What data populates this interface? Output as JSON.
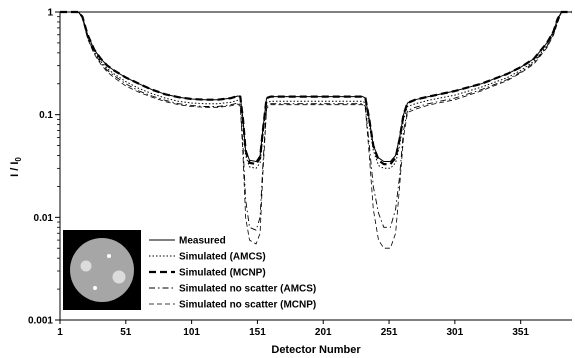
{
  "chart_data": {
    "type": "line",
    "xlabel": "Detector Number",
    "ylabel": "I / I",
    "ylabel_subscript": "0",
    "y_scale": "log",
    "xlim": [
      1,
      390
    ],
    "ylim": [
      0.001,
      1
    ],
    "x_ticks": [
      1,
      51,
      101,
      151,
      201,
      251,
      301,
      351
    ],
    "y_ticks": [
      {
        "value": 0.001,
        "label": "0.001"
      },
      {
        "value": 0.01,
        "label": "0.01"
      },
      {
        "value": 0.1,
        "label": "0.1"
      },
      {
        "value": 1,
        "label": "1"
      }
    ],
    "legend_position": "bottom-left",
    "inset_image": "phantom-cross-section",
    "series": [
      {
        "name": "Measured",
        "style": "solid-thin",
        "x": [
          1,
          15,
          18,
          22,
          27,
          32,
          37,
          42,
          51,
          61,
          71,
          81,
          91,
          101,
          111,
          121,
          131,
          136,
          138,
          140,
          142,
          145,
          150,
          153,
          155,
          158,
          161,
          171,
          181,
          201,
          221,
          231,
          233,
          236,
          239,
          243,
          247,
          252,
          256,
          259,
          262,
          265,
          271,
          281,
          301,
          321,
          341,
          351,
          361,
          371,
          376,
          379,
          382,
          385,
          390
        ],
        "y": [
          1,
          1,
          0.9,
          0.6,
          0.43,
          0.35,
          0.3,
          0.27,
          0.23,
          0.2,
          0.175,
          0.158,
          0.148,
          0.142,
          0.14,
          0.14,
          0.145,
          0.152,
          0.15,
          0.09,
          0.045,
          0.036,
          0.035,
          0.04,
          0.07,
          0.145,
          0.15,
          0.15,
          0.15,
          0.15,
          0.15,
          0.15,
          0.145,
          0.09,
          0.05,
          0.038,
          0.035,
          0.035,
          0.04,
          0.06,
          0.1,
          0.13,
          0.14,
          0.15,
          0.17,
          0.2,
          0.25,
          0.29,
          0.35,
          0.5,
          0.65,
          0.85,
          1,
          1,
          1
        ]
      },
      {
        "name": "Simulated (AMCS)",
        "style": "dotted",
        "x": [
          1,
          15,
          18,
          22,
          27,
          32,
          37,
          42,
          51,
          61,
          71,
          81,
          91,
          101,
          111,
          121,
          131,
          136,
          138,
          140,
          142,
          145,
          150,
          153,
          155,
          158,
          161,
          171,
          181,
          201,
          221,
          231,
          233,
          236,
          239,
          243,
          247,
          252,
          256,
          259,
          262,
          265,
          271,
          281,
          301,
          321,
          341,
          351,
          361,
          371,
          376,
          379,
          382,
          385,
          390
        ],
        "y": [
          1,
          1,
          0.88,
          0.57,
          0.41,
          0.33,
          0.28,
          0.25,
          0.21,
          0.18,
          0.16,
          0.145,
          0.135,
          0.13,
          0.128,
          0.128,
          0.132,
          0.138,
          0.135,
          0.08,
          0.04,
          0.031,
          0.03,
          0.034,
          0.06,
          0.13,
          0.135,
          0.135,
          0.135,
          0.135,
          0.135,
          0.135,
          0.13,
          0.08,
          0.045,
          0.032,
          0.03,
          0.03,
          0.034,
          0.05,
          0.09,
          0.12,
          0.128,
          0.138,
          0.155,
          0.185,
          0.23,
          0.27,
          0.33,
          0.47,
          0.62,
          0.82,
          1,
          1,
          1
        ]
      },
      {
        "name": "Simulated (MCNP)",
        "style": "dashed-thick",
        "x": [
          1,
          15,
          18,
          22,
          27,
          32,
          37,
          42,
          51,
          61,
          71,
          81,
          91,
          101,
          111,
          121,
          131,
          136,
          138,
          140,
          142,
          145,
          150,
          153,
          155,
          158,
          161,
          171,
          181,
          201,
          221,
          231,
          233,
          236,
          239,
          243,
          247,
          252,
          256,
          259,
          262,
          265,
          271,
          281,
          301,
          321,
          341,
          351,
          361,
          371,
          376,
          379,
          382,
          385,
          390
        ],
        "y": [
          1,
          1,
          0.9,
          0.6,
          0.43,
          0.35,
          0.3,
          0.27,
          0.23,
          0.2,
          0.175,
          0.158,
          0.148,
          0.142,
          0.14,
          0.14,
          0.145,
          0.152,
          0.15,
          0.09,
          0.045,
          0.034,
          0.033,
          0.038,
          0.068,
          0.145,
          0.15,
          0.15,
          0.15,
          0.15,
          0.15,
          0.15,
          0.145,
          0.09,
          0.05,
          0.036,
          0.033,
          0.033,
          0.038,
          0.058,
          0.1,
          0.13,
          0.14,
          0.15,
          0.17,
          0.2,
          0.25,
          0.29,
          0.35,
          0.5,
          0.65,
          0.85,
          1,
          1,
          1
        ]
      },
      {
        "name": "Simulated no scatter (AMCS)",
        "style": "dash-dot",
        "x": [
          1,
          15,
          18,
          22,
          27,
          32,
          37,
          42,
          51,
          61,
          71,
          81,
          91,
          101,
          111,
          121,
          131,
          136,
          138,
          140,
          142,
          145,
          150,
          153,
          155,
          158,
          161,
          171,
          181,
          201,
          221,
          231,
          233,
          236,
          239,
          243,
          247,
          252,
          256,
          259,
          262,
          265,
          271,
          281,
          301,
          321,
          341,
          351,
          361,
          371,
          376,
          379,
          382,
          385,
          390
        ],
        "y": [
          1,
          1,
          0.88,
          0.56,
          0.4,
          0.32,
          0.27,
          0.24,
          0.2,
          0.17,
          0.152,
          0.138,
          0.128,
          0.123,
          0.12,
          0.12,
          0.125,
          0.13,
          0.125,
          0.05,
          0.015,
          0.008,
          0.0075,
          0.01,
          0.03,
          0.12,
          0.128,
          0.128,
          0.128,
          0.128,
          0.128,
          0.128,
          0.12,
          0.05,
          0.02,
          0.011,
          0.008,
          0.008,
          0.012,
          0.025,
          0.07,
          0.11,
          0.118,
          0.128,
          0.145,
          0.175,
          0.22,
          0.26,
          0.32,
          0.46,
          0.61,
          0.8,
          1,
          1,
          1
        ]
      },
      {
        "name": "Simulated no scatter (MCNP)",
        "style": "dashed-thin",
        "x": [
          1,
          15,
          18,
          22,
          27,
          32,
          37,
          42,
          51,
          61,
          71,
          81,
          91,
          101,
          111,
          121,
          131,
          136,
          138,
          140,
          142,
          145,
          150,
          153,
          155,
          158,
          161,
          171,
          181,
          201,
          221,
          231,
          233,
          236,
          239,
          243,
          247,
          252,
          256,
          259,
          262,
          265,
          271,
          281,
          301,
          321,
          341,
          351,
          361,
          371,
          376,
          379,
          382,
          385,
          390
        ],
        "y": [
          1,
          1,
          0.87,
          0.55,
          0.39,
          0.31,
          0.26,
          0.23,
          0.19,
          0.165,
          0.148,
          0.134,
          0.125,
          0.12,
          0.118,
          0.118,
          0.122,
          0.127,
          0.12,
          0.04,
          0.01,
          0.006,
          0.0055,
          0.007,
          0.025,
          0.115,
          0.125,
          0.125,
          0.125,
          0.125,
          0.125,
          0.125,
          0.115,
          0.04,
          0.012,
          0.006,
          0.005,
          0.005,
          0.007,
          0.02,
          0.06,
          0.105,
          0.113,
          0.124,
          0.14,
          0.17,
          0.215,
          0.255,
          0.31,
          0.45,
          0.6,
          0.78,
          1,
          1,
          1
        ]
      }
    ]
  }
}
